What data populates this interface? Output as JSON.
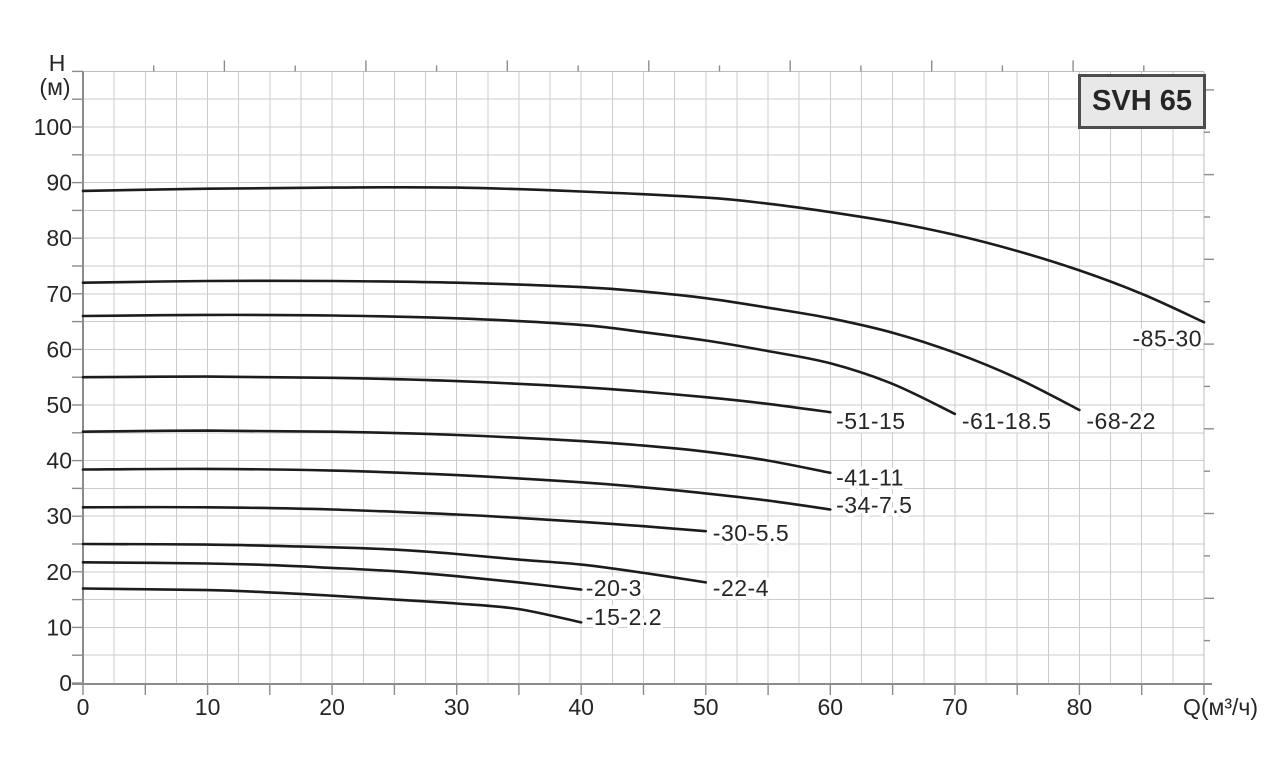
{
  "model_box": {
    "label": "SVH 65"
  },
  "colors": {
    "background": "#ffffff",
    "grid": "#cccccc",
    "frame": "#bdbdbd",
    "axis": "#8c8c8c",
    "curve": "#1c1c1c",
    "text": "#262626",
    "box_fill": "#e8e8e8",
    "box_border": "#4d4d4d"
  },
  "chart_data": {
    "type": "line",
    "title": "SVH 65",
    "xlabel": "Q(м³/ч)",
    "ylabel": "H (м)",
    "ylabel_lines": [
      "H",
      "(м)"
    ],
    "xlim": [
      0,
      90
    ],
    "ylim": [
      0,
      110
    ],
    "grid": {
      "on": true,
      "x_step": 2.5,
      "y_step": 5
    },
    "legend_position": "none",
    "x_major_ticks": [
      0,
      10,
      20,
      30,
      40,
      50,
      60,
      70,
      80
    ],
    "x_tick_labels": [
      "0",
      "10",
      "20",
      "30",
      "40",
      "50",
      "60",
      "70",
      "80"
    ],
    "x_minor_tick_step": 5,
    "y_major_ticks": [
      0,
      10,
      20,
      30,
      40,
      50,
      60,
      70,
      80,
      90,
      100
    ],
    "y_tick_labels": [
      "0",
      "10",
      "20",
      "30",
      "40",
      "50",
      "60",
      "70",
      "80",
      "90",
      "100"
    ],
    "y_minor_tick_step": 5,
    "top_tick_q_step": 5.678,
    "right_tick_h_step": 7.62,
    "series": [
      {
        "name": "-85-30",
        "points": [
          [
            0,
            88.5
          ],
          [
            10,
            88.9
          ],
          [
            20,
            89.1
          ],
          [
            30,
            89.1
          ],
          [
            40,
            88.4
          ],
          [
            50,
            87.3
          ],
          [
            55,
            86.2
          ],
          [
            60,
            84.7
          ],
          [
            65,
            82.9
          ],
          [
            70,
            80.6
          ],
          [
            75,
            77.7
          ],
          [
            80,
            74.2
          ],
          [
            85,
            70.0
          ],
          [
            90,
            64.9
          ]
        ],
        "label_q": 90,
        "label_h": 62.0,
        "label_anchor": "end"
      },
      {
        "name": "-68-22",
        "points": [
          [
            0,
            72.0
          ],
          [
            10,
            72.3
          ],
          [
            20,
            72.3
          ],
          [
            30,
            72.0
          ],
          [
            40,
            71.2
          ],
          [
            45,
            70.4
          ],
          [
            50,
            69.2
          ],
          [
            55,
            67.5
          ],
          [
            60,
            65.6
          ],
          [
            65,
            63.0
          ],
          [
            70,
            59.4
          ],
          [
            75,
            54.8
          ],
          [
            80,
            49.1
          ]
        ],
        "label_q": 80.4,
        "label_h": 47.1,
        "label_anchor": "start"
      },
      {
        "name": "-61-18.5",
        "points": [
          [
            0,
            66.0
          ],
          [
            10,
            66.2
          ],
          [
            20,
            66.1
          ],
          [
            30,
            65.6
          ],
          [
            40,
            64.4
          ],
          [
            45,
            63.1
          ],
          [
            50,
            61.6
          ],
          [
            55,
            59.7
          ],
          [
            60,
            57.5
          ],
          [
            65,
            53.8
          ],
          [
            70,
            48.4
          ]
        ],
        "label_q": 70.4,
        "label_h": 47.1,
        "label_anchor": "start"
      },
      {
        "name": "-51-15",
        "points": [
          [
            0,
            55.0
          ],
          [
            10,
            55.1
          ],
          [
            20,
            54.9
          ],
          [
            30,
            54.3
          ],
          [
            40,
            53.2
          ],
          [
            45,
            52.4
          ],
          [
            50,
            51.4
          ],
          [
            55,
            50.2
          ],
          [
            60,
            48.7
          ]
        ],
        "label_q": 60.3,
        "label_h": 47.1,
        "label_anchor": "start"
      },
      {
        "name": "-41-11",
        "points": [
          [
            0,
            45.2
          ],
          [
            10,
            45.4
          ],
          [
            20,
            45.2
          ],
          [
            30,
            44.6
          ],
          [
            40,
            43.5
          ],
          [
            45,
            42.7
          ],
          [
            50,
            41.6
          ],
          [
            55,
            40.0
          ],
          [
            60,
            37.8
          ]
        ],
        "label_q": 60.3,
        "label_h": 37.0,
        "label_anchor": "start"
      },
      {
        "name": "-34-7.5",
        "points": [
          [
            0,
            38.4
          ],
          [
            10,
            38.5
          ],
          [
            20,
            38.2
          ],
          [
            30,
            37.4
          ],
          [
            40,
            36.1
          ],
          [
            45,
            35.2
          ],
          [
            50,
            34.1
          ],
          [
            55,
            32.8
          ],
          [
            60,
            31.2
          ]
        ],
        "label_q": 60.3,
        "label_h": 32.0,
        "label_anchor": "start"
      },
      {
        "name": "-30-5.5",
        "points": [
          [
            0,
            31.6
          ],
          [
            10,
            31.6
          ],
          [
            20,
            31.2
          ],
          [
            30,
            30.3
          ],
          [
            35,
            29.7
          ],
          [
            40,
            29.0
          ],
          [
            45,
            28.2
          ],
          [
            50,
            27.3
          ]
        ],
        "label_q": 50.4,
        "label_h": 27.0,
        "label_anchor": "start"
      },
      {
        "name": "-22-4",
        "points": [
          [
            0,
            25.0
          ],
          [
            10,
            24.9
          ],
          [
            20,
            24.4
          ],
          [
            25,
            24.0
          ],
          [
            30,
            23.2
          ],
          [
            35,
            22.2
          ],
          [
            40,
            21.3
          ],
          [
            45,
            19.8
          ],
          [
            50,
            18.1
          ]
        ],
        "label_q": 50.4,
        "label_h": 17.1,
        "label_anchor": "start"
      },
      {
        "name": "-20-3",
        "points": [
          [
            0,
            21.7
          ],
          [
            10,
            21.5
          ],
          [
            15,
            21.2
          ],
          [
            20,
            20.7
          ],
          [
            25,
            20.1
          ],
          [
            30,
            19.2
          ],
          [
            35,
            18.1
          ],
          [
            40,
            16.8
          ]
        ],
        "label_q": 40.2,
        "label_h": 17.1,
        "label_anchor": "start"
      },
      {
        "name": "-15-2.2",
        "points": [
          [
            0,
            17.0
          ],
          [
            10,
            16.7
          ],
          [
            15,
            16.3
          ],
          [
            20,
            15.7
          ],
          [
            25,
            15.0
          ],
          [
            30,
            14.3
          ],
          [
            35,
            13.3
          ],
          [
            40,
            10.9
          ]
        ],
        "label_q": 40.2,
        "label_h": 11.9,
        "label_anchor": "start"
      }
    ]
  }
}
